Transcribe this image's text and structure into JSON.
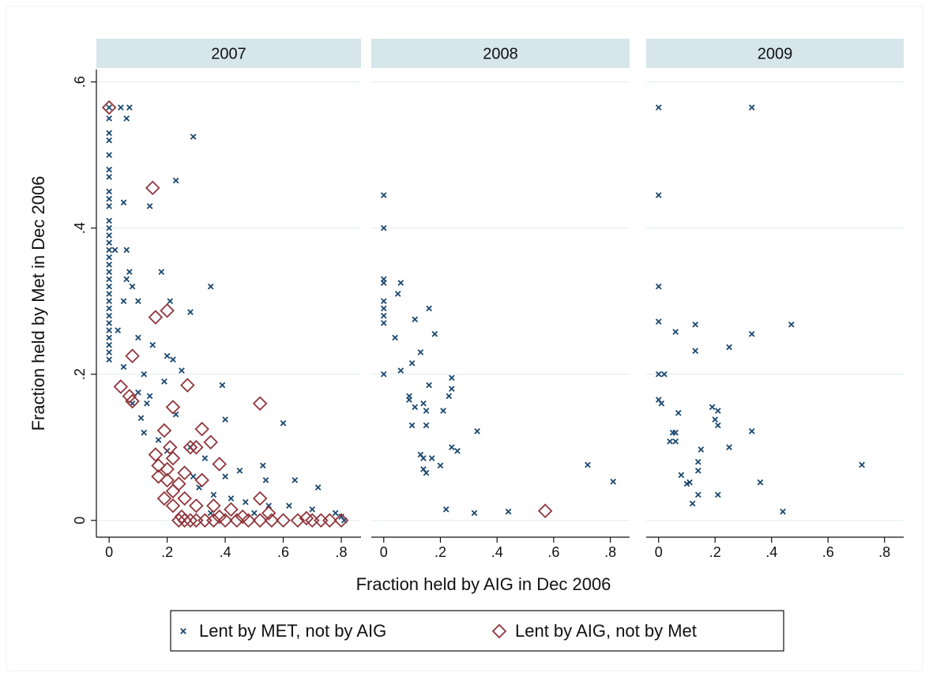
{
  "chart_data": {
    "type": "scatter",
    "x_label": "Fraction held by AIG in Dec 2006",
    "y_label": "Fraction held by Met in Dec 2006",
    "xlim": [
      -0.044,
      0.868
    ],
    "ylim": [
      -0.023,
      0.617
    ],
    "xticks": [
      0,
      {
        "value": 0.2,
        "label": ".2"
      },
      {
        "value": 0.4,
        "label": ".4"
      },
      {
        "value": 0.6,
        "label": ".6"
      },
      {
        "value": 0.8,
        "label": ".8"
      }
    ],
    "yticks": [
      0,
      {
        "value": 0.2,
        "label": ".2"
      },
      {
        "value": 0.4,
        "label": ".4"
      },
      {
        "value": 0.6,
        "label": ".6"
      }
    ],
    "grid": true,
    "legend": "bottom",
    "series": [
      {
        "name": "Lent by MET, not by AIG",
        "color": "#1a476f",
        "marker": "x"
      },
      {
        "name": "Lent by AIG, not by Met",
        "color": "#90353b",
        "marker": "diamond"
      }
    ],
    "panels": [
      {
        "title": "2007",
        "series": [
          {
            "x": [
              0,
              0,
              0,
              0,
              0,
              0,
              0,
              0,
              0,
              0,
              0,
              0,
              0,
              0,
              0,
              0,
              0,
              0,
              0,
              0,
              0,
              0,
              0,
              0,
              0,
              0,
              0,
              0,
              0,
              0,
              0.04,
              0.07,
              0.06,
              0.29,
              0.23,
              0.05,
              0.14,
              0.06,
              0.02,
              0.07,
              0.18,
              0.06,
              0.35,
              0.08,
              0.05,
              0.1,
              0.21,
              0.28,
              0.03,
              0.1,
              0.15,
              0.2,
              0.22,
              0.25,
              0.05,
              0.12,
              0.19,
              0.39,
              0.1,
              0.14,
              0.08,
              0.13,
              0.23,
              0.11,
              0.6,
              0.4,
              0.12,
              0.17,
              0.28,
              0.2,
              0.33,
              0.53,
              0.45,
              0.29,
              0.4,
              0.54,
              0.64,
              0.72,
              0.31,
              0.36,
              0.42,
              0.47,
              0.55,
              0.62,
              0.7,
              0.78,
              0.8,
              0.81,
              0.5,
              0.35
            ],
            "y": [
              0.565,
              0.55,
              0.53,
              0.52,
              0.5,
              0.48,
              0.47,
              0.45,
              0.44,
              0.43,
              0.41,
              0.4,
              0.39,
              0.38,
              0.37,
              0.36,
              0.35,
              0.34,
              0.33,
              0.32,
              0.31,
              0.3,
              0.29,
              0.28,
              0.27,
              0.26,
              0.25,
              0.24,
              0.23,
              0.22,
              0.565,
              0.565,
              0.55,
              0.525,
              0.465,
              0.435,
              0.43,
              0.37,
              0.37,
              0.34,
              0.34,
              0.33,
              0.32,
              0.32,
              0.3,
              0.3,
              0.3,
              0.285,
              0.26,
              0.25,
              0.24,
              0.225,
              0.22,
              0.205,
              0.21,
              0.2,
              0.19,
              0.185,
              0.175,
              0.17,
              0.16,
              0.16,
              0.145,
              0.14,
              0.133,
              0.138,
              0.12,
              0.11,
              0.1,
              0.095,
              0.085,
              0.075,
              0.068,
              0.06,
              0.06,
              0.055,
              0.055,
              0.045,
              0.045,
              0.035,
              0.03,
              0.025,
              0.02,
              0.02,
              0.015,
              0.01,
              0.005,
              0,
              0.01,
              0.01
            ]
          },
          {
            "x": [
              0,
              0.15,
              0.2,
              0.16,
              0.08,
              0.04,
              0.27,
              0.07,
              0.08,
              0.52,
              0.22,
              0.32,
              0.19,
              0.35,
              0.21,
              0.28,
              0.3,
              0.16,
              0.22,
              0.38,
              0.17,
              0.2,
              0.26,
              0.17,
              0.2,
              0.32,
              0.24,
              0.22,
              0.19,
              0.26,
              0.36,
              0.52,
              0.22,
              0.3,
              0.42,
              0.55,
              0.25,
              0.28,
              0.3,
              0.33,
              0.36,
              0.4,
              0.44,
              0.48,
              0.52,
              0.56,
              0.6,
              0.65,
              0.7,
              0.73,
              0.76,
              0.8,
              0.24,
              0.26,
              0.46,
              0.38,
              0.68
            ],
            "y": [
              0.565,
              0.455,
              0.287,
              0.278,
              0.225,
              0.183,
              0.185,
              0.17,
              0.163,
              0.16,
              0.155,
              0.125,
              0.123,
              0.107,
              0.1,
              0.1,
              0.1,
              0.09,
              0.085,
              0.077,
              0.075,
              0.07,
              0.065,
              0.06,
              0.055,
              0.055,
              0.05,
              0.04,
              0.03,
              0.03,
              0.02,
              0.03,
              0.02,
              0.02,
              0.015,
              0.01,
              0.005,
              0,
              0,
              0,
              0,
              0,
              0,
              0,
              0,
              0,
              0,
              0,
              0,
              0,
              0,
              0,
              0,
              0,
              0.005,
              0.005,
              0.003
            ]
          }
        ]
      },
      {
        "title": "2008",
        "series": [
          {
            "x": [
              0,
              0,
              0,
              0,
              0.06,
              0.05,
              0,
              0,
              0,
              0,
              0,
              0.04,
              0.16,
              0.11,
              0.18,
              0.13,
              0.1,
              0.06,
              0.24,
              0.24,
              0.09,
              0.16,
              0.23,
              0.09,
              0.14,
              0.11,
              0.15,
              0.21,
              0.1,
              0.15,
              0.33,
              0.24,
              0.26,
              0.13,
              0.14,
              0.17,
              0.2,
              0.14,
              0.15,
              0.72,
              0.81,
              0.22,
              0.32,
              0.44
            ],
            "y": [
              0.445,
              0.4,
              0.33,
              0.325,
              0.325,
              0.31,
              0.3,
              0.29,
              0.28,
              0.27,
              0.2,
              0.25,
              0.29,
              0.275,
              0.255,
              0.23,
              0.215,
              0.205,
              0.195,
              0.18,
              0.17,
              0.185,
              0.17,
              0.165,
              0.16,
              0.155,
              0.15,
              0.15,
              0.13,
              0.13,
              0.122,
              0.1,
              0.095,
              0.09,
              0.085,
              0.085,
              0.075,
              0.07,
              0.065,
              0.076,
              0.053,
              0.015,
              0.01,
              0.012
            ]
          },
          {
            "x": [
              0.57
            ],
            "y": [
              0.013
            ]
          }
        ]
      },
      {
        "title": "2009",
        "series": [
          {
            "x": [
              0,
              0.33,
              0,
              0,
              0,
              0.06,
              0.13,
              0.47,
              0.33,
              0.25,
              0.13,
              0,
              0.02,
              0,
              0.01,
              0.07,
              0.19,
              0.21,
              0.2,
              0.21,
              0.33,
              0.05,
              0.06,
              0.04,
              0.06,
              0.15,
              0.25,
              0.14,
              0.72,
              0.08,
              0.14,
              0.11,
              0.1,
              0.36,
              0.14,
              0.21,
              0.12,
              0.44
            ],
            "y": [
              0.565,
              0.565,
              0.445,
              0.32,
              0.272,
              0.258,
              0.268,
              0.268,
              0.255,
              0.237,
              0.232,
              0.2,
              0.2,
              0.165,
              0.16,
              0.147,
              0.155,
              0.15,
              0.138,
              0.13,
              0.122,
              0.12,
              0.12,
              0.108,
              0.108,
              0.097,
              0.1,
              0.08,
              0.076,
              0.062,
              0.068,
              0.052,
              0.05,
              0.052,
              0.035,
              0.035,
              0.023,
              0.012
            ]
          },
          {
            "x": [],
            "y": []
          }
        ]
      }
    ]
  }
}
